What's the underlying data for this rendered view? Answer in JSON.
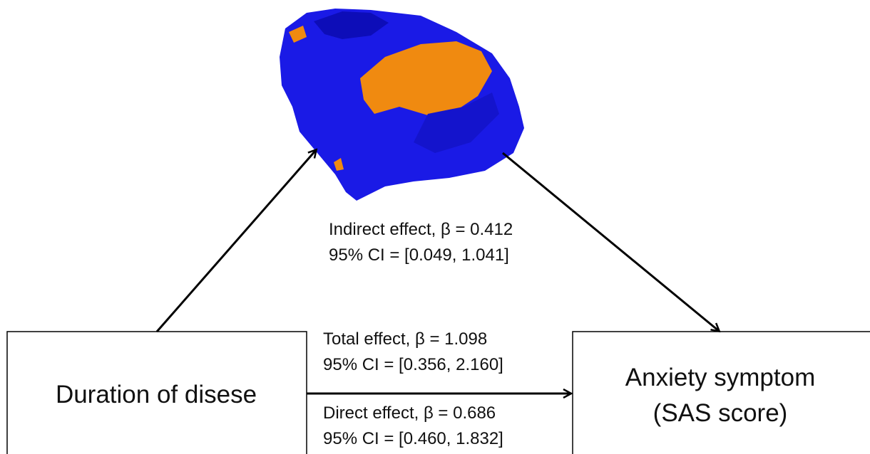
{
  "nodes": [
    {
      "label": "Duration of disese"
    },
    {
      "label_lines": [
        "Anxiety symptom",
        "(SAS score)"
      ]
    }
  ],
  "annotations": {
    "indirect": [
      "Indirect effect, β = 0.412",
      "95% CI = [0.049, 1.041]"
    ],
    "total": [
      "Total effect, β = 1.098",
      "95% CI = [0.356, 2.160]"
    ],
    "direct": [
      "Direct effect, β = 0.686",
      "95% CI = [0.460, 1.832]"
    ]
  }
}
